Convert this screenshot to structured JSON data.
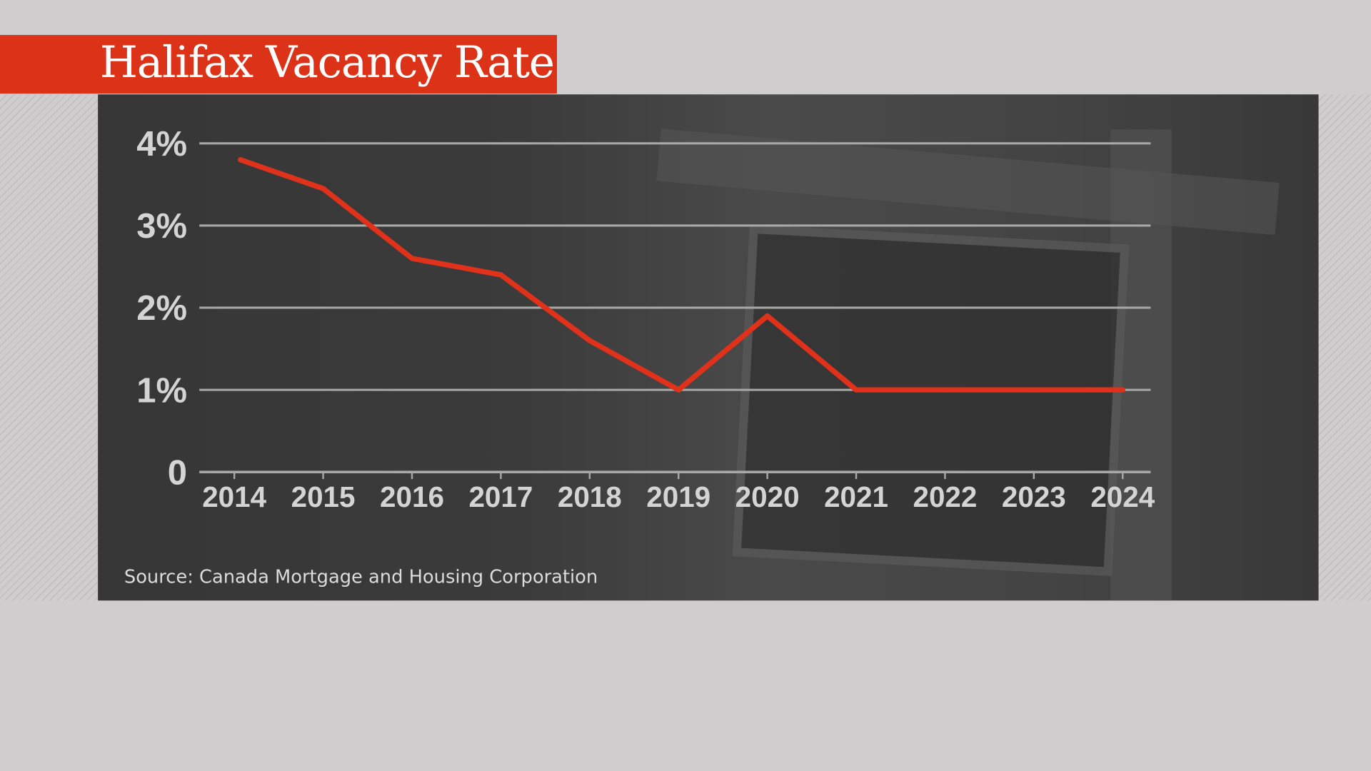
{
  "title": "Halifax Vacancy Rate",
  "source": "Source: Canada Mortgage and Housing Corporation",
  "colors": {
    "banner": "#dc3318",
    "line": "#e0321a",
    "panel": "#3a3a3a",
    "background": "#cfcdce"
  },
  "chart_data": {
    "type": "line",
    "title": "Halifax Vacancy Rate",
    "x": [
      "2014",
      "2015",
      "2016",
      "2017",
      "2018",
      "2019",
      "2020",
      "2021",
      "2022",
      "2023",
      "2024"
    ],
    "series": [
      {
        "values": [
          3.8,
          3.45,
          2.6,
          2.4,
          1.6,
          1.0,
          1.9,
          1.0,
          1.0,
          1.0,
          1.0
        ]
      }
    ],
    "yticks": [
      {
        "value": 0,
        "label": "0"
      },
      {
        "value": 1,
        "label": "1%"
      },
      {
        "value": 2,
        "label": "2%"
      },
      {
        "value": 3,
        "label": "3%"
      },
      {
        "value": 4,
        "label": "4%"
      }
    ],
    "ylim": [
      0,
      4
    ],
    "grid": true,
    "legend": "none"
  }
}
